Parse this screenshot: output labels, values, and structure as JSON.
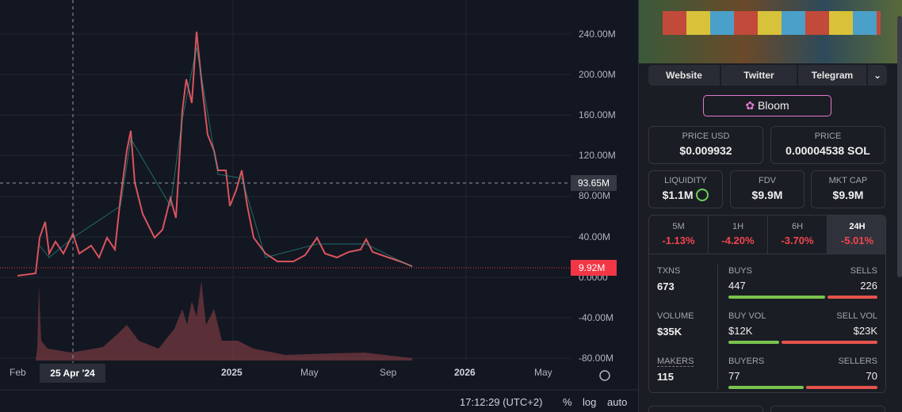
{
  "chart": {
    "y_axis_labels": [
      "240.00M",
      "200.00M",
      "160.00M",
      "120.00M",
      "80.00M",
      "40.00M",
      "0.0000",
      "-40.00M",
      "-80.00M"
    ],
    "crosshair_label": "93.65M",
    "price_label": "9.92M",
    "x_axis_labels": [
      "Feb",
      "25 Apr '24",
      "2025",
      "May",
      "Sep",
      "2026",
      "May"
    ],
    "footer": {
      "time": "17:12:29 (UTC+2)",
      "percent": "%",
      "log": "log",
      "auto": "auto"
    }
  },
  "sidebar": {
    "links": [
      "Website",
      "Twitter",
      "Telegram"
    ],
    "badge": "Bloom",
    "price_usd": {
      "label": "PRICE USD",
      "value": "$0.009932"
    },
    "price": {
      "label": "PRICE",
      "value": "0.00004538 SOL"
    },
    "liquidity": {
      "label": "LIQUIDITY",
      "value": "$1.1M"
    },
    "fdv": {
      "label": "FDV",
      "value": "$9.9M"
    },
    "mkt_cap": {
      "label": "MKT CAP",
      "value": "$9.9M"
    },
    "timeframes": [
      {
        "label": "5M",
        "change": "-1.13%"
      },
      {
        "label": "1H",
        "change": "-4.20%"
      },
      {
        "label": "6H",
        "change": "-3.70%"
      },
      {
        "label": "24H",
        "change": "-5.01%"
      }
    ],
    "stats": {
      "txns": {
        "label": "TXNS",
        "value": "673"
      },
      "buys": {
        "label": "BUYS",
        "value": "447"
      },
      "sells": {
        "label": "SELLS",
        "value": "226"
      },
      "volume": {
        "label": "VOLUME",
        "value": "$35K"
      },
      "buy_vol": {
        "label": "BUY VOL",
        "value": "$12K"
      },
      "sell_vol": {
        "label": "SELL VOL",
        "value": "$23K"
      },
      "makers": {
        "label": "MAKERS",
        "value": "115"
      },
      "buyers": {
        "label": "BUYERS",
        "value": "77"
      },
      "sellers": {
        "label": "SELLERS",
        "value": "70"
      }
    }
  }
}
